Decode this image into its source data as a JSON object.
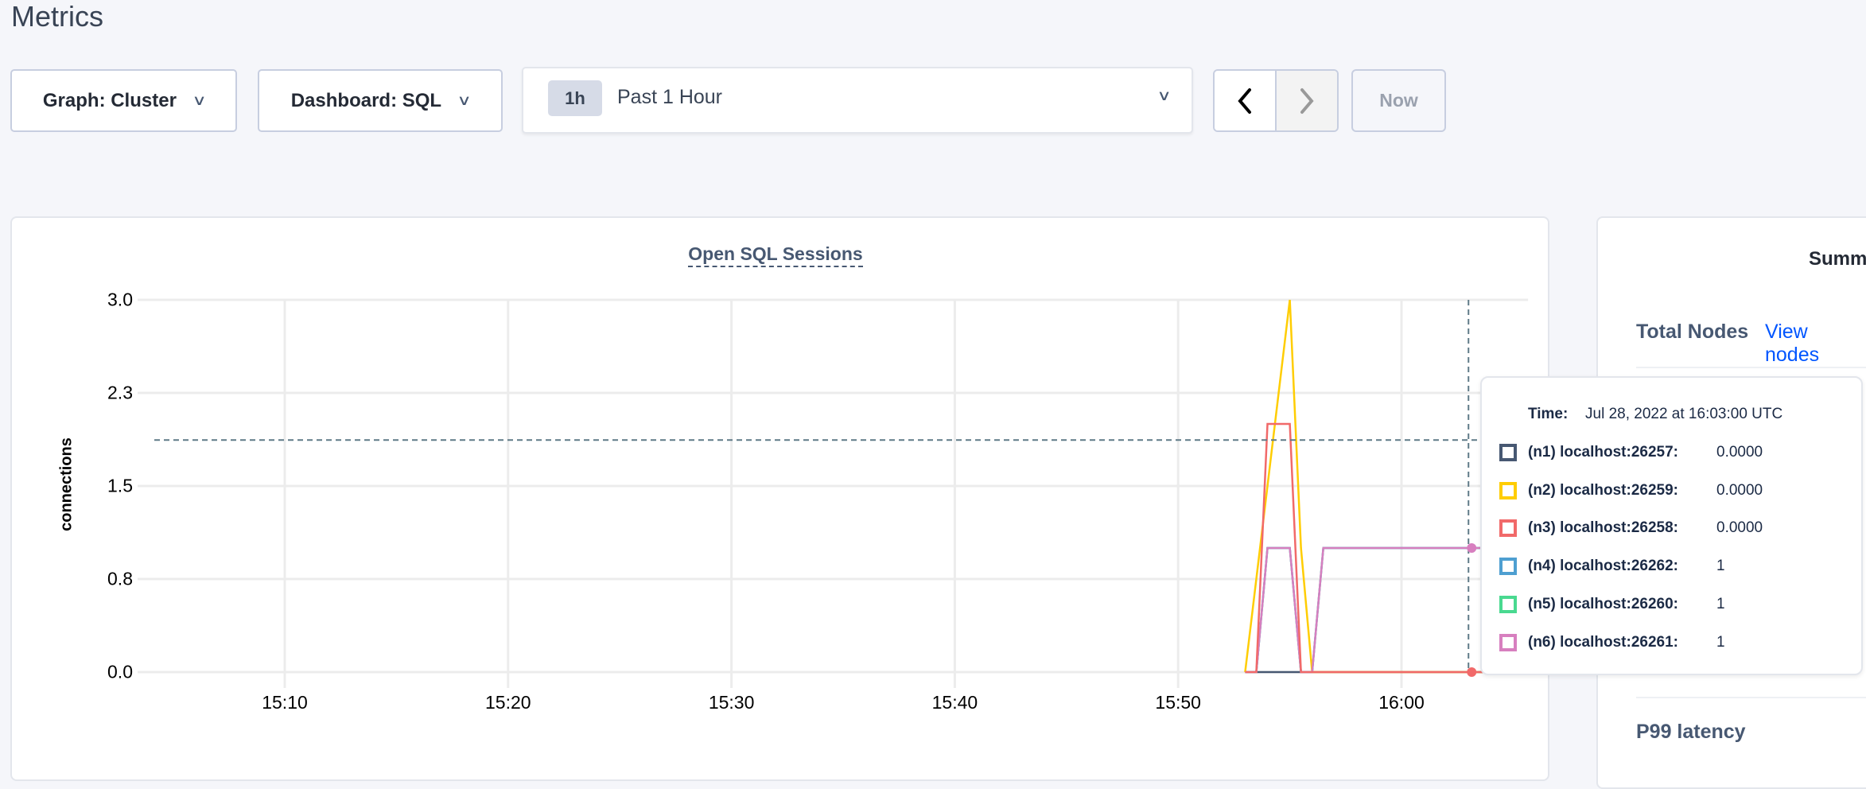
{
  "page": {
    "title": "Metrics"
  },
  "toolbar": {
    "graph_select": "Graph: Cluster",
    "dashboard_select": "Dashboard: SQL",
    "time_badge": "1h",
    "time_range": "Past 1 Hour",
    "prev_icon": "chevron-left-icon",
    "next_icon": "chevron-right-icon",
    "now_label": "Now"
  },
  "summary": {
    "title_partial": "Summ",
    "total_nodes_label": "Total Nodes",
    "view_nodes_link": "View nodes",
    "p99_label": "P99 latency"
  },
  "tooltip": {
    "time_label": "Time:",
    "time_value": "Jul 28, 2022 at 16:03:00 UTC",
    "rows": [
      {
        "label": "(n1) localhost:26257:",
        "value": "0.0000",
        "color": "#475872"
      },
      {
        "label": "(n2) localhost:26259:",
        "value": "0.0000",
        "color": "#ffcd02"
      },
      {
        "label": "(n3) localhost:26258:",
        "value": "0.0000",
        "color": "#f16969"
      },
      {
        "label": "(n4) localhost:26262:",
        "value": "1",
        "color": "#4e9fd1"
      },
      {
        "label": "(n5) localhost:26260:",
        "value": "1",
        "color": "#49d990"
      },
      {
        "label": "(n6) localhost:26261:",
        "value": "1",
        "color": "#d77fbf"
      }
    ]
  },
  "chart_data": {
    "type": "line",
    "title": "Open SQL Sessions",
    "ylabel": "connections",
    "xlabel": "",
    "ylim": [
      0,
      3
    ],
    "xlim": [
      "15:03:30",
      "16:05:40"
    ],
    "grid": true,
    "yticks": [
      {
        "value": 3,
        "label": "3.0"
      },
      {
        "value": 2.25,
        "label": "2.3"
      },
      {
        "value": 1.5,
        "label": "1.5"
      },
      {
        "value": 0.75,
        "label": "0.8"
      },
      {
        "value": 0,
        "label": "0.0"
      }
    ],
    "xticks": [
      "15:10",
      "15:20",
      "15:30",
      "15:40",
      "15:50",
      "16:00"
    ],
    "crosshair": {
      "time": "16:03:00",
      "value": 1.87
    },
    "series": [
      {
        "name": "(n1) localhost:26257",
        "color": "#475872",
        "x": [
          "15:53:00",
          "16:03:00",
          "16:05:40"
        ],
        "values": [
          0,
          0,
          0
        ]
      },
      {
        "name": "(n5) localhost:26260",
        "color": "#49d990",
        "x": [
          "15:53:00",
          "15:53:30",
          "15:54:00",
          "15:55:00",
          "15:55:30",
          "15:56:00",
          "15:56:30",
          "16:03:00",
          "16:05:40"
        ],
        "values": [
          0,
          0,
          1,
          1,
          0,
          0,
          1,
          1,
          1
        ]
      },
      {
        "name": "(n4) localhost:26262",
        "color": "#4e9fd1",
        "x": [
          "15:53:00",
          "15:53:30",
          "15:54:00",
          "15:55:00",
          "15:55:30",
          "15:56:00",
          "15:56:30",
          "16:03:00",
          "16:05:40"
        ],
        "values": [
          0,
          0,
          1,
          1,
          0,
          0,
          1,
          1,
          1
        ]
      },
      {
        "name": "(n2) localhost:26259",
        "color": "#ffcd02",
        "x": [
          "15:53:00",
          "15:55:00",
          "15:55:30",
          "15:56:00",
          "16:03:00",
          "16:05:40"
        ],
        "values": [
          0,
          3,
          1,
          0,
          0,
          0
        ]
      },
      {
        "name": "(n6) localhost:26261",
        "color": "#d77fbf",
        "x": [
          "15:53:00",
          "15:53:30",
          "15:54:00",
          "15:55:00",
          "15:55:30",
          "15:56:00",
          "15:56:30",
          "16:03:00",
          "16:05:40"
        ],
        "values": [
          0,
          0,
          1,
          1,
          0,
          0,
          1,
          1,
          1
        ]
      },
      {
        "name": "(n3) localhost:26258",
        "color": "#f16969",
        "x": [
          "15:53:00",
          "15:53:30",
          "15:54:00",
          "15:55:00",
          "15:55:30",
          "16:03:00",
          "16:05:40"
        ],
        "values": [
          0,
          0,
          2,
          2,
          0,
          0,
          0
        ]
      }
    ]
  }
}
